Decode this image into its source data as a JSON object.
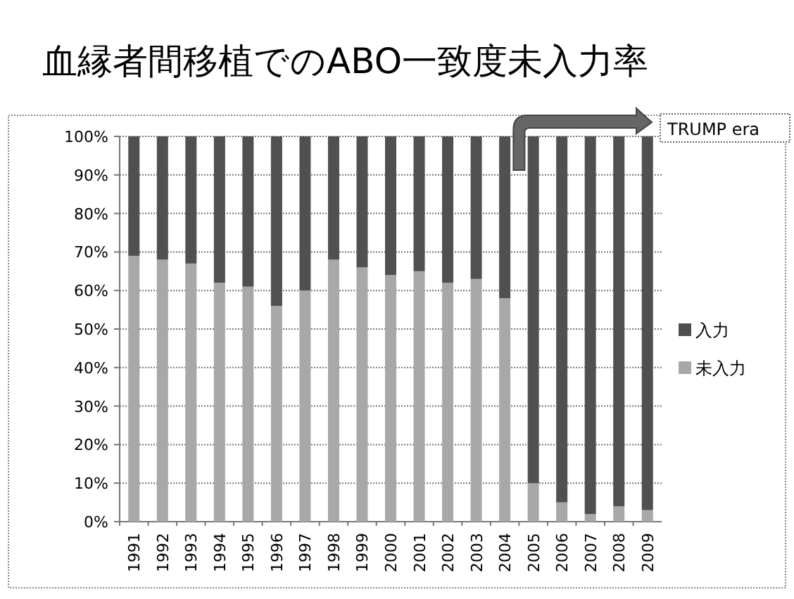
{
  "chart_data": {
    "type": "bar",
    "stacked": true,
    "title": "血縁者間移植でのABO一致度未入力率",
    "categories": [
      "1991",
      "1992",
      "1993",
      "1994",
      "1995",
      "1996",
      "1997",
      "1998",
      "1999",
      "2000",
      "2001",
      "2002",
      "2003",
      "2004",
      "2005",
      "2006",
      "2007",
      "2008",
      "2009"
    ],
    "series": [
      {
        "name": "未入力",
        "color": "#a8a8a8",
        "values": [
          69,
          68,
          67,
          62,
          61,
          56,
          60,
          68,
          66,
          64,
          65,
          62,
          63,
          58,
          10,
          5,
          2,
          4,
          3
        ]
      },
      {
        "name": "入力",
        "color": "#505050",
        "values": [
          31,
          32,
          33,
          38,
          39,
          44,
          40,
          32,
          34,
          36,
          35,
          38,
          37,
          42,
          90,
          95,
          98,
          96,
          97
        ]
      }
    ],
    "ylim": [
      0,
      100
    ],
    "yticks": [
      {
        "value": 0,
        "label": "0%"
      },
      {
        "value": 10,
        "label": "10%"
      },
      {
        "value": 20,
        "label": "20%"
      },
      {
        "value": 30,
        "label": "30%"
      },
      {
        "value": 40,
        "label": "40%"
      },
      {
        "value": 50,
        "label": "50%"
      },
      {
        "value": 60,
        "label": "60%"
      },
      {
        "value": 70,
        "label": "70%"
      },
      {
        "value": 80,
        "label": "80%"
      },
      {
        "value": 90,
        "label": "90%"
      },
      {
        "value": 100,
        "label": "100%"
      }
    ],
    "grid": "y",
    "legend": "right",
    "annotations": [
      "TRUMP era"
    ]
  }
}
